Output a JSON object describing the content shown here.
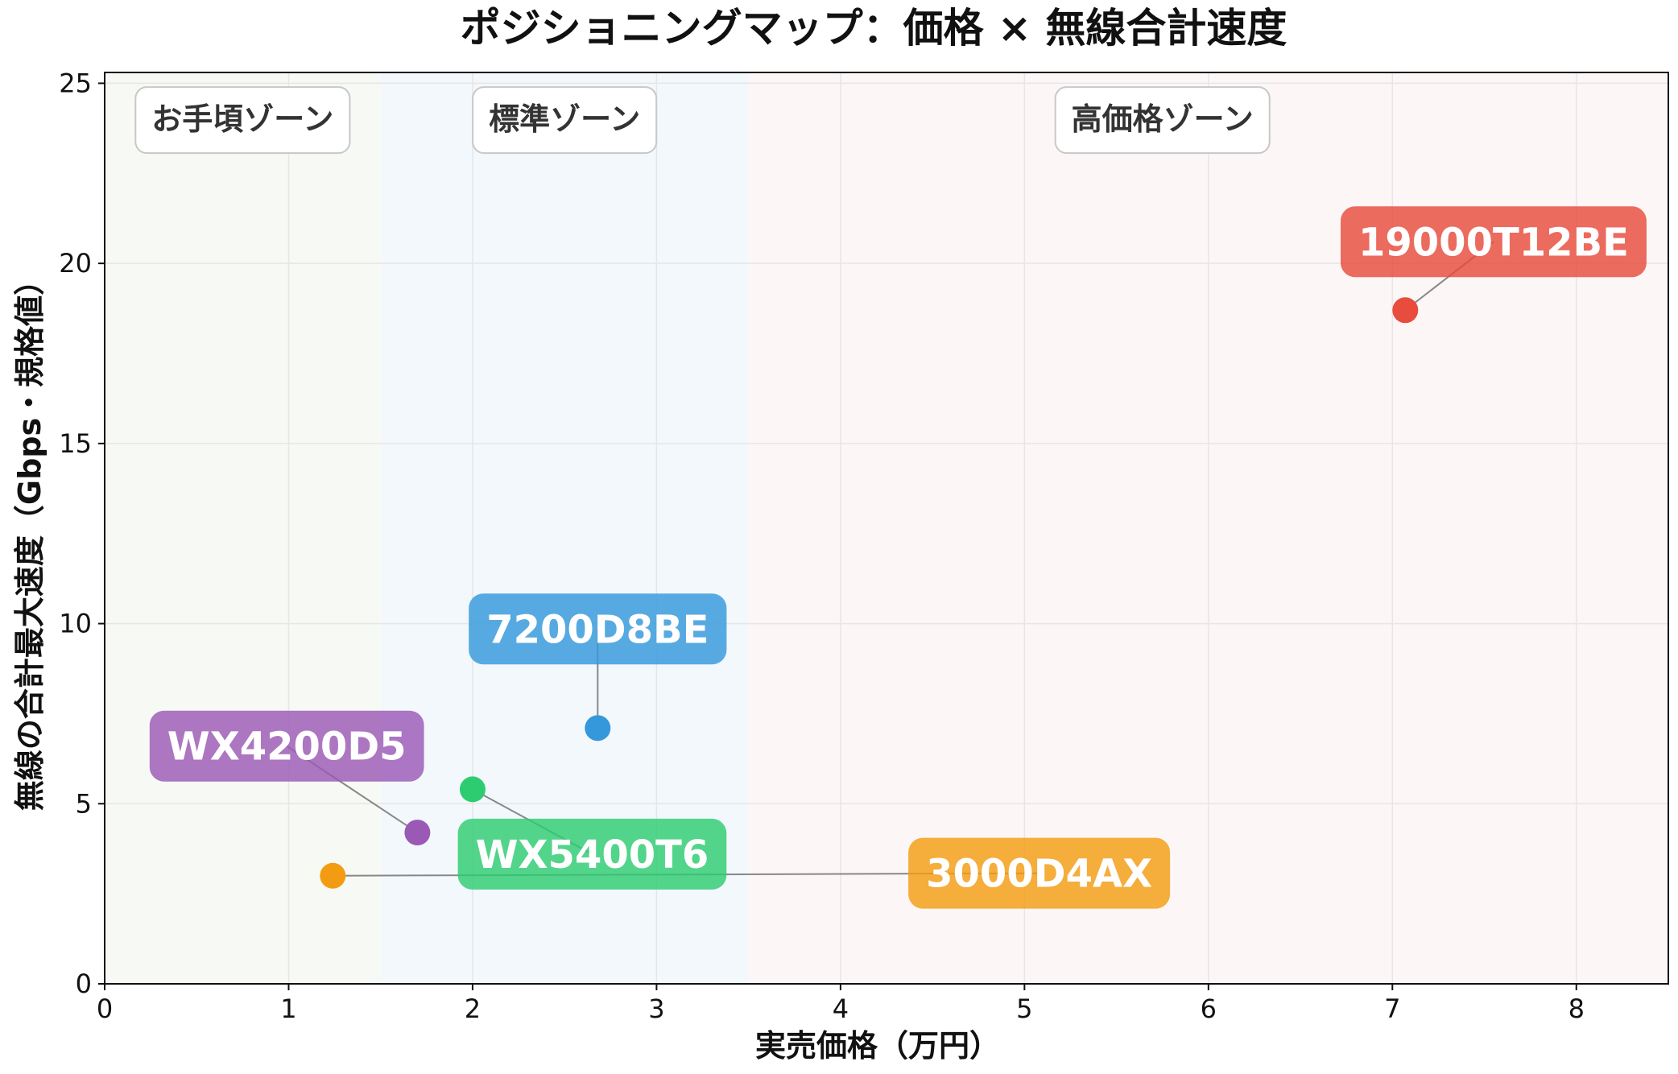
{
  "chart_data": {
    "type": "scatter",
    "title": "ポジショニングマップ：価格 × 無線合計速度",
    "xlabel": "実売価格（万円）",
    "ylabel": "無線の合計最大速度（Gbps・規格値）",
    "xlim": [
      0,
      8.5
    ],
    "ylim": [
      0,
      25.3
    ],
    "xticks": [
      0,
      1,
      2,
      3,
      4,
      5,
      6,
      7,
      8
    ],
    "yticks": [
      0,
      5,
      10,
      15,
      20,
      25
    ],
    "grid": true,
    "zones": [
      {
        "name": "お手頃ゾーン",
        "x_range": [
          0,
          1.5
        ],
        "color": "#f7f9f5"
      },
      {
        "name": "標準ゾーン",
        "x_range": [
          1.5,
          3.5
        ],
        "color": "#f3f8fc"
      },
      {
        "name": "高価格ゾーン",
        "x_range": [
          3.5,
          8.5
        ],
        "color": "#fdf6f6"
      }
    ],
    "points": [
      {
        "label": "19000T12BE",
        "x": 7.07,
        "y": 18.7,
        "color": "#e74c3c",
        "label_x": 7.55,
        "label_y": 20.6
      },
      {
        "label": "7200D8BE",
        "x": 2.68,
        "y": 7.1,
        "color": "#3498db",
        "label_x": 2.68,
        "label_y": 9.85
      },
      {
        "label": "WX4200D5",
        "x": 1.7,
        "y": 4.2,
        "color": "#9b59b6",
        "label_x": 0.99,
        "label_y": 6.6
      },
      {
        "label": "WX5400T6",
        "x": 2.0,
        "y": 5.4,
        "color": "#2ecc71",
        "label_x": 2.65,
        "label_y": 3.6
      },
      {
        "label": "3000D4AX",
        "x": 1.24,
        "y": 3.0,
        "color": "#f39c12",
        "label_x": 5.08,
        "label_y": 3.07
      }
    ]
  }
}
